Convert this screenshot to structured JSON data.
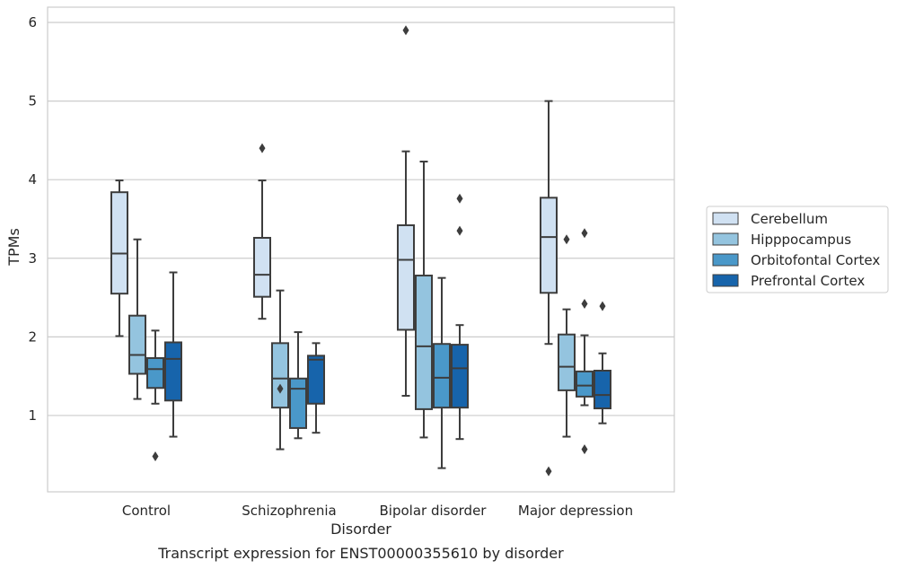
{
  "chart_data": {
    "type": "box",
    "caption": "Transcript expression for ENST00000355610 by disorder",
    "xlabel": "Disorder",
    "ylabel": "TPMs",
    "ylim": [
      0,
      6.2
    ],
    "yticks": [
      1,
      2,
      3,
      4,
      5,
      6
    ],
    "grid": "horizontal",
    "legend_position": "right",
    "categories": [
      "Control",
      "Schizophrenia",
      "Bipolar disorder",
      "Major depression"
    ],
    "series": [
      {
        "name": "Cerebellum",
        "color": "#d0e1f2",
        "boxes": [
          {
            "whisker_low": 2.01,
            "q1": 2.55,
            "median": 3.06,
            "q3": 3.84,
            "whisker_high": 3.99,
            "outliers": []
          },
          {
            "whisker_low": 2.23,
            "q1": 2.51,
            "median": 2.79,
            "q3": 3.26,
            "whisker_high": 3.99,
            "outliers": [
              4.4
            ]
          },
          {
            "whisker_low": 1.25,
            "q1": 2.09,
            "median": 2.98,
            "q3": 3.42,
            "whisker_high": 4.36,
            "outliers": [
              5.9
            ]
          },
          {
            "whisker_low": 1.91,
            "q1": 2.56,
            "median": 3.27,
            "q3": 3.77,
            "whisker_high": 5.0,
            "outliers": [
              0.29
            ]
          }
        ]
      },
      {
        "name": "Hipppocampus",
        "color": "#94c4df",
        "boxes": [
          {
            "whisker_low": 1.21,
            "q1": 1.53,
            "median": 1.77,
            "q3": 2.27,
            "whisker_high": 3.24,
            "outliers": []
          },
          {
            "whisker_low": 0.57,
            "q1": 1.1,
            "median": 1.47,
            "q3": 1.92,
            "whisker_high": 2.59,
            "outliers": [
              1.34
            ]
          },
          {
            "whisker_low": 0.72,
            "q1": 1.08,
            "median": 1.88,
            "q3": 2.78,
            "whisker_high": 4.23,
            "outliers": []
          },
          {
            "whisker_low": 0.73,
            "q1": 1.32,
            "median": 1.62,
            "q3": 2.03,
            "whisker_high": 2.35,
            "outliers": [
              3.24
            ]
          }
        ]
      },
      {
        "name": "Orbitofontal Cortex",
        "color": "#4a98c9",
        "boxes": [
          {
            "whisker_low": 1.15,
            "q1": 1.35,
            "median": 1.59,
            "q3": 1.73,
            "whisker_high": 2.08,
            "outliers": [
              0.48
            ]
          },
          {
            "whisker_low": 0.71,
            "q1": 0.84,
            "median": 1.34,
            "q3": 1.47,
            "whisker_high": 2.06,
            "outliers": []
          },
          {
            "whisker_low": 0.33,
            "q1": 1.1,
            "median": 1.48,
            "q3": 1.91,
            "whisker_high": 2.75,
            "outliers": []
          },
          {
            "whisker_low": 1.13,
            "q1": 1.24,
            "median": 1.38,
            "q3": 1.56,
            "whisker_high": 2.02,
            "outliers": [
              0.57,
              2.42,
              3.32
            ]
          }
        ]
      },
      {
        "name": "Prefrontal Cortex",
        "color": "#1764ab",
        "boxes": [
          {
            "whisker_low": 0.73,
            "q1": 1.19,
            "median": 1.72,
            "q3": 1.93,
            "whisker_high": 2.82,
            "outliers": []
          },
          {
            "whisker_low": 0.78,
            "q1": 1.15,
            "median": 1.71,
            "q3": 1.76,
            "whisker_high": 1.92,
            "outliers": []
          },
          {
            "whisker_low": 0.7,
            "q1": 1.1,
            "median": 1.6,
            "q3": 1.9,
            "whisker_high": 2.15,
            "outliers": [
              3.35,
              3.76
            ]
          },
          {
            "whisker_low": 0.9,
            "q1": 1.09,
            "median": 1.26,
            "q3": 1.57,
            "whisker_high": 1.79,
            "outliers": [
              2.39
            ]
          }
        ]
      }
    ]
  }
}
